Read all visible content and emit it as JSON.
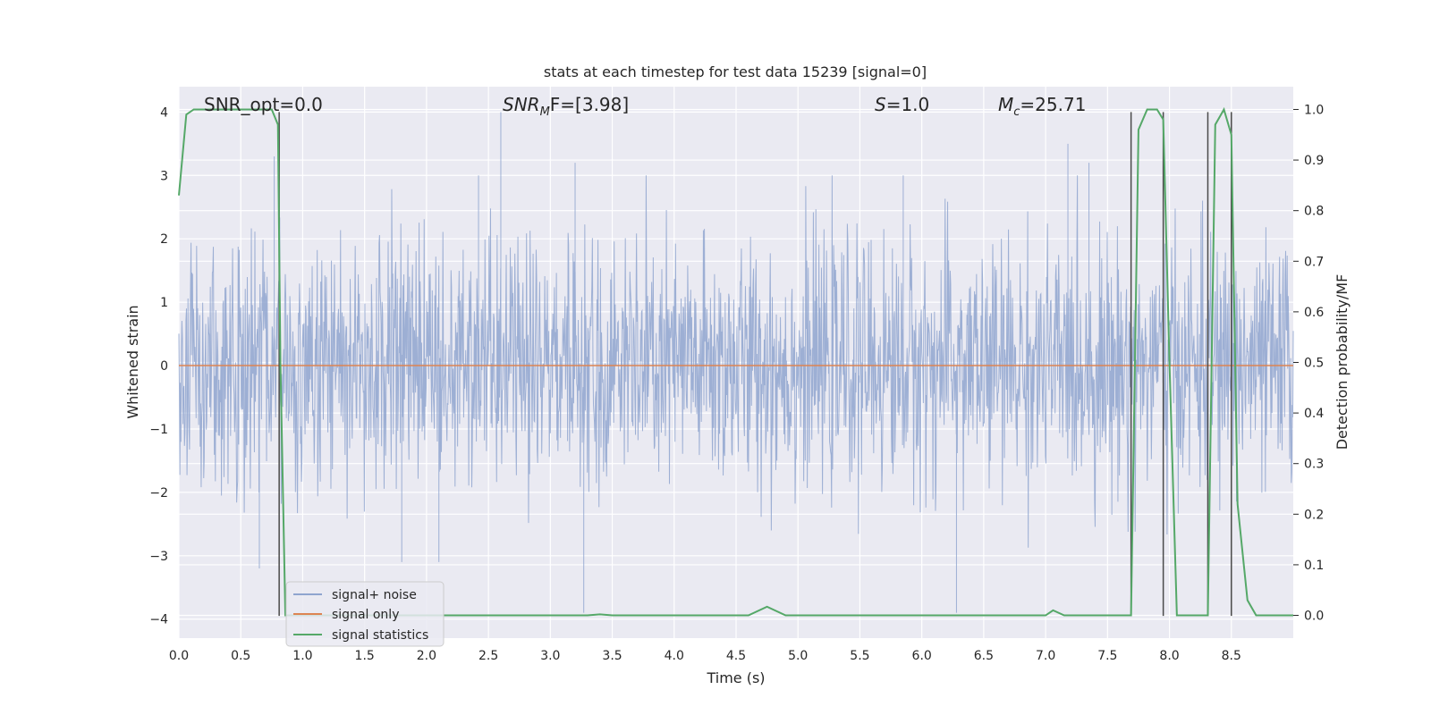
{
  "chart_data": {
    "type": "line",
    "title": "stats at each timestep for test data 15239 [signal=0]",
    "xlabel": "Time (s)",
    "ylabel_left": "Whitened strain",
    "ylabel_right": "Detection probability/MF",
    "xlim": [
      0.0,
      9.0
    ],
    "ylim_left": [
      -4.3,
      4.4
    ],
    "ylim_right": [
      -0.045,
      1.045
    ],
    "x_ticks": [
      0.0,
      0.5,
      1.0,
      1.5,
      2.0,
      2.5,
      3.0,
      3.5,
      4.0,
      4.5,
      5.0,
      5.5,
      6.0,
      6.5,
      7.0,
      7.5,
      8.0,
      8.5
    ],
    "x_tick_labels": [
      "0.0",
      "0.5",
      "1.0",
      "1.5",
      "2.0",
      "2.5",
      "3.0",
      "3.5",
      "4.0",
      "4.5",
      "5.0",
      "5.5",
      "6.0",
      "6.5",
      "7.0",
      "7.5",
      "8.0",
      "8.5"
    ],
    "y_left_ticks": [
      -4,
      -3,
      -2,
      -1,
      0,
      1,
      2,
      3,
      4
    ],
    "y_left_tick_labels": [
      "−4",
      "−3",
      "−2",
      "−1",
      "0",
      "1",
      "2",
      "3",
      "4"
    ],
    "y_right_ticks": [
      0.0,
      0.1,
      0.2,
      0.3,
      0.4,
      0.5,
      0.6,
      0.7,
      0.8,
      0.9,
      1.0
    ],
    "y_right_tick_labels": [
      "0.0",
      "0.1",
      "0.2",
      "0.3",
      "0.4",
      "0.5",
      "0.6",
      "0.7",
      "0.8",
      "0.9",
      "1.0"
    ],
    "grid": true,
    "legend_position": "lower-left",
    "annotations": [
      {
        "text": "SNR_opt=0.0"
      },
      {
        "text": "SNR",
        "sub": "M",
        "suffix": "F=[3.98]"
      },
      {
        "text": "S",
        "suffix": "=1.0"
      },
      {
        "text": "M",
        "sub": "c",
        "suffix": "=25.71"
      }
    ],
    "vertical_markers_s": [
      0.81,
      7.69,
      7.95,
      8.31,
      8.5
    ],
    "series": [
      {
        "name": "signal+ noise",
        "color": "#8fa5cf",
        "axis": "left",
        "description_values": {
          "core_abs_range": 1.5,
          "notable_peaks": [
            {
              "x": 0.77,
              "y": 3.3
            },
            {
              "x": 2.6,
              "y": 4.0
            },
            {
              "x": 2.42,
              "y": 3.0
            },
            {
              "x": 3.2,
              "y": 3.2
            },
            {
              "x": 3.27,
              "y": -3.9
            },
            {
              "x": 6.28,
              "y": -3.9
            },
            {
              "x": 7.18,
              "y": 3.5
            },
            {
              "x": 7.35,
              "y": 3.2
            },
            {
              "x": 5.85,
              "y": 3.0
            },
            {
              "x": 1.8,
              "y": -3.1
            },
            {
              "x": 2.1,
              "y": -3.1
            },
            {
              "x": 0.65,
              "y": -3.2
            }
          ]
        }
      },
      {
        "name": "signal only",
        "color": "#dd8452",
        "axis": "left",
        "x": [
          0.0,
          9.0
        ],
        "y": [
          0.0,
          0.0
        ]
      },
      {
        "name": "signal statistics",
        "color": "#55a868",
        "axis": "right",
        "x": [
          0.0,
          0.06,
          0.12,
          0.3,
          0.5,
          0.7,
          0.75,
          0.8,
          0.82,
          0.86,
          0.9,
          1.5,
          2.5,
          3.3,
          3.4,
          3.5,
          4.0,
          4.6,
          4.75,
          4.9,
          5.0,
          6.0,
          7.0,
          7.06,
          7.15,
          7.5,
          7.69,
          7.75,
          7.82,
          7.9,
          7.95,
          8.0,
          8.06,
          8.25,
          8.31,
          8.37,
          8.44,
          8.5,
          8.55,
          8.63,
          8.7,
          8.8,
          9.0
        ],
        "y": [
          0.83,
          0.99,
          1.0,
          1.0,
          1.0,
          1.0,
          1.0,
          0.97,
          0.5,
          0.0,
          0.0,
          0.0,
          0.0,
          0.0,
          0.002,
          0.0,
          0.0,
          0.0,
          0.017,
          0.0,
          0.0,
          0.0,
          0.0,
          0.01,
          0.0,
          0.0,
          0.0,
          0.96,
          1.0,
          1.0,
          0.98,
          0.5,
          0.0,
          0.0,
          0.0,
          0.97,
          1.0,
          0.95,
          0.22,
          0.03,
          0.0,
          0.0,
          0.0
        ]
      }
    ]
  }
}
